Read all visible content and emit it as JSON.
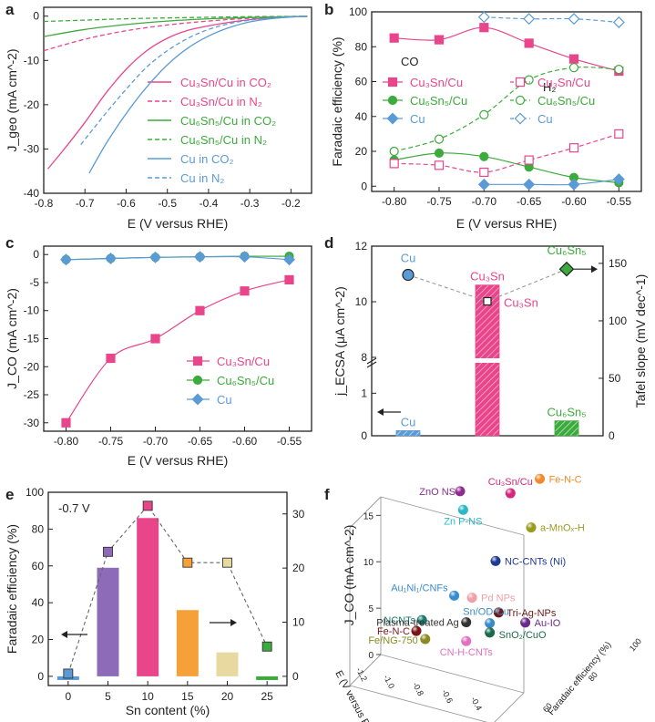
{
  "colors": {
    "pink": "#e8458b",
    "green": "#3caa3c",
    "blue": "#5b9bd5",
    "purple": "#8e6bb8",
    "orange": "#f4a13a",
    "beige": "#e8d9a0",
    "darkgreen": "#2e8a2e"
  },
  "chart_data": [
    {
      "panel": "a",
      "type": "line",
      "xlabel": "E (V versus RHE)",
      "ylabel": "J_geo (mA cm^-2)",
      "xlim": [
        -0.8,
        -0.15
      ],
      "ylim": [
        -40,
        2
      ],
      "xticks": [
        -0.8,
        -0.7,
        -0.6,
        -0.5,
        -0.4,
        -0.3,
        -0.2
      ],
      "yticks": [
        0,
        -10,
        -20,
        -30,
        -40
      ],
      "xtick_labels": [
        "-0.8",
        "-0.7",
        "-0.6",
        "-0.5",
        "-0.4",
        "-0.3",
        "-0.2"
      ],
      "ytick_labels": [
        "0",
        "-10",
        "-20",
        "-30",
        "-40"
      ],
      "series": [
        {
          "name": "Cu3Sn/Cu in CO2",
          "label": "Cu₃Sn/Cu in CO₂",
          "color": "#e8458b",
          "dash": false,
          "x": [
            -0.79,
            -0.75,
            -0.7,
            -0.65,
            -0.6,
            -0.55,
            -0.5,
            -0.45,
            -0.4,
            -0.35,
            -0.3,
            -0.25,
            -0.2,
            -0.16
          ],
          "y": [
            -34.5,
            -30,
            -24,
            -17.5,
            -12,
            -7.8,
            -5,
            -3.2,
            -2.2,
            -1.4,
            -0.8,
            -0.4,
            -0.15,
            -0.05
          ]
        },
        {
          "name": "Cu3Sn/Cu in N2",
          "label": "Cu₃Sn/Cu in N₂",
          "color": "#e8458b",
          "dash": true,
          "x": [
            -0.8,
            -0.7,
            -0.6,
            -0.5,
            -0.4,
            -0.3,
            -0.2,
            -0.16
          ],
          "y": [
            -7.8,
            -5.2,
            -3.3,
            -2,
            -1.1,
            -0.5,
            -0.15,
            -0.05
          ]
        },
        {
          "name": "Cu6Sn5/Cu in CO2",
          "label": "Cu₆Sn₅/Cu in CO₂",
          "color": "#3caa3c",
          "dash": false,
          "x": [
            -0.8,
            -0.7,
            -0.6,
            -0.5,
            -0.4,
            -0.3,
            -0.2,
            -0.16
          ],
          "y": [
            -4.6,
            -3,
            -1.9,
            -1.1,
            -0.6,
            -0.3,
            -0.1,
            0
          ]
        },
        {
          "name": "Cu6Sn5/Cu in N2",
          "label": "Cu₆Sn₅/Cu in N₂",
          "color": "#3caa3c",
          "dash": true,
          "x": [
            -0.8,
            -0.7,
            -0.6,
            -0.5,
            -0.4,
            -0.3,
            -0.2,
            -0.16
          ],
          "y": [
            -1.2,
            -0.9,
            -0.6,
            -0.4,
            -0.25,
            -0.12,
            -0.05,
            0
          ]
        },
        {
          "name": "Cu in CO2",
          "label": "Cu in CO₂",
          "color": "#5b9bd5",
          "dash": false,
          "x": [
            -0.69,
            -0.65,
            -0.6,
            -0.55,
            -0.5,
            -0.45,
            -0.4,
            -0.35,
            -0.3,
            -0.25,
            -0.2,
            -0.16
          ],
          "y": [
            -35.5,
            -29,
            -22,
            -16,
            -11,
            -7.2,
            -4.5,
            -2.6,
            -1.3,
            -0.6,
            -0.2,
            -0.05
          ]
        },
        {
          "name": "Cu in N2",
          "label": "Cu in N₂",
          "color": "#5b9bd5",
          "dash": true,
          "x": [
            -0.71,
            -0.65,
            -0.6,
            -0.55,
            -0.5,
            -0.45,
            -0.4,
            -0.35,
            -0.3,
            -0.25,
            -0.2,
            -0.16
          ],
          "y": [
            -29,
            -22,
            -16.5,
            -11.5,
            -7.8,
            -5,
            -3,
            -1.7,
            -0.9,
            -0.4,
            -0.15,
            -0.05
          ]
        }
      ]
    },
    {
      "panel": "b",
      "type": "line",
      "xlabel": "E (V versus RHE)",
      "ylabel": "Faradaic efficiency (%)",
      "xlim": [
        -0.825,
        -0.525
      ],
      "ylim": [
        -3,
        100
      ],
      "categories": [
        -0.8,
        -0.75,
        -0.7,
        -0.65,
        -0.6,
        -0.55
      ],
      "xtick_labels": [
        "-0.80",
        "-0.75",
        "-0.70",
        "-0.65",
        "-0.60",
        "-0.55"
      ],
      "yticks": [
        0,
        20,
        40,
        60,
        80,
        100
      ],
      "ytick_labels": [
        "0",
        "20",
        "40",
        "60",
        "80",
        "100"
      ],
      "legend_co": "CO",
      "legend_h2": "H₂",
      "series": [
        {
          "name": "Cu3Sn/Cu CO",
          "label": "Cu₃Sn/Cu",
          "gas": "CO",
          "color": "#e8458b",
          "marker": "square",
          "filled": true,
          "x": [
            -0.8,
            -0.75,
            -0.7,
            -0.65,
            -0.6,
            -0.55
          ],
          "values": [
            85,
            84,
            91,
            82,
            73,
            66
          ]
        },
        {
          "name": "Cu6Sn5/Cu CO",
          "label": "Cu₆Sn₅/Cu",
          "gas": "CO",
          "color": "#3caa3c",
          "marker": "circle",
          "filled": true,
          "x": [
            -0.8,
            -0.75,
            -0.7,
            -0.65,
            -0.6,
            -0.55
          ],
          "values": [
            15,
            19,
            17,
            11,
            5,
            2
          ]
        },
        {
          "name": "Cu CO",
          "label": "Cu",
          "gas": "CO",
          "color": "#5b9bd5",
          "marker": "diamond",
          "filled": true,
          "x": [
            -0.7,
            -0.65,
            -0.6,
            -0.55
          ],
          "values": [
            1,
            1,
            1,
            4
          ]
        },
        {
          "name": "Cu3Sn/Cu H2",
          "label": "Cu₃Sn/Cu",
          "gas": "H2",
          "color": "#e8458b",
          "marker": "square",
          "filled": false,
          "x": [
            -0.8,
            -0.75,
            -0.7,
            -0.65,
            -0.6,
            -0.55
          ],
          "values": [
            13,
            12,
            8,
            15,
            22,
            30
          ]
        },
        {
          "name": "Cu6Sn5/Cu H2",
          "label": "Cu₆Sn₅/Cu",
          "gas": "H2",
          "color": "#3caa3c",
          "marker": "circle",
          "filled": false,
          "x": [
            -0.8,
            -0.75,
            -0.7,
            -0.65,
            -0.6,
            -0.55
          ],
          "values": [
            20,
            27,
            41,
            61,
            68,
            67
          ]
        },
        {
          "name": "Cu H2",
          "label": "Cu",
          "gas": "H2",
          "color": "#5b9bd5",
          "marker": "diamond",
          "filled": false,
          "x": [
            -0.7,
            -0.65,
            -0.6,
            -0.55
          ],
          "values": [
            97,
            96,
            96,
            94
          ]
        }
      ]
    },
    {
      "panel": "c",
      "type": "line",
      "xlabel": "E (V versus RHE)",
      "ylabel": "J_CO (mA cm^-2)",
      "xlim": [
        -0.825,
        -0.525
      ],
      "ylim": [
        -31.5,
        1.5
      ],
      "categories": [
        -0.8,
        -0.75,
        -0.7,
        -0.65,
        -0.6,
        -0.55
      ],
      "xtick_labels": [
        "-0.80",
        "-0.75",
        "-0.70",
        "-0.65",
        "-0.60",
        "-0.55"
      ],
      "yticks": [
        0,
        -5,
        -10,
        -15,
        -20,
        -25,
        -30
      ],
      "ytick_labels": [
        "0",
        "-5",
        "-10",
        "-15",
        "-20",
        "-25",
        "-30"
      ],
      "series": [
        {
          "name": "Cu3Sn/Cu",
          "label": "Cu₃Sn/Cu",
          "color": "#e8458b",
          "marker": "square",
          "x": [
            -0.8,
            -0.75,
            -0.7,
            -0.65,
            -0.6,
            -0.55
          ],
          "values": [
            -30,
            -18.5,
            -15,
            -10,
            -6.5,
            -4.5
          ]
        },
        {
          "name": "Cu6Sn5/Cu",
          "label": "Cu₆Sn₅/Cu",
          "color": "#3caa3c",
          "marker": "circle",
          "x": [
            -0.8,
            -0.75,
            -0.7,
            -0.65,
            -0.6,
            -0.55
          ],
          "values": [
            -0.9,
            -0.7,
            -0.5,
            -0.4,
            -0.3,
            -0.3
          ]
        },
        {
          "name": "Cu",
          "label": "Cu",
          "color": "#5b9bd5",
          "marker": "diamond",
          "x": [
            -0.8,
            -0.75,
            -0.7,
            -0.65,
            -0.6,
            -0.55
          ],
          "values": [
            -0.9,
            -0.7,
            -0.5,
            -0.4,
            -0.4,
            -0.9
          ]
        }
      ]
    },
    {
      "panel": "d",
      "type": "bar",
      "ylabel_left": "j_ECSA (μA cm^-2)",
      "ylabel_right": "Tafel slope (mV dec^-1)",
      "categories": [
        "Cu",
        "Cu₃Sn",
        "Cu₆Sn₅"
      ],
      "bar_values": [
        0.12,
        10.6,
        0.35
      ],
      "bar_labels": [
        "Cu",
        "Cu₃Sn",
        "Cu₆Sn₅"
      ],
      "tafel_values": [
        140,
        117,
        145
      ],
      "tafel_labels": [
        "Cu",
        "Cu₃Sn",
        "Cu₆Sn₅"
      ],
      "left_axis_segments": [
        {
          "range": [
            0,
            1.5
          ],
          "ticks": [
            0,
            1
          ]
        },
        {
          "range": [
            8,
            12
          ],
          "ticks": [
            8,
            10,
            12
          ]
        }
      ],
      "right_ylim": [
        0,
        165
      ],
      "right_yticks": [
        0,
        50,
        100,
        150
      ],
      "left_tick_labels": [
        "0",
        "1",
        "8",
        "10",
        "12"
      ],
      "right_tick_labels": [
        "0",
        "50",
        "100",
        "150"
      ]
    },
    {
      "panel": "e",
      "type": "bar",
      "annotation": "-0.7 V",
      "xlabel": "Sn content (%)",
      "ylabel_left": "Faradaic efficiency (%)",
      "ylim_left": [
        -5,
        100
      ],
      "ylim_right": [
        -1.7,
        34
      ],
      "categories": [
        "0",
        "5",
        "10",
        "15",
        "20",
        "25"
      ],
      "bar_values": [
        -2,
        59,
        86,
        36,
        13,
        -2
      ],
      "scatter_values": [
        0.5,
        23,
        31.5,
        21,
        21,
        5.5
      ],
      "colors": [
        "#5b9bd5",
        "#8e6bb8",
        "#e8458b",
        "#f4a13a",
        "#e8d9a0",
        "#3caa3c"
      ],
      "yticks_left": [
        0,
        20,
        40,
        60,
        80,
        100
      ],
      "yticks_right": [
        0,
        10,
        20,
        30
      ],
      "left_tick_labels": [
        "0",
        "20",
        "40",
        "60",
        "80",
        "100"
      ],
      "right_tick_labels": [
        "0",
        "10",
        "20",
        "30"
      ]
    },
    {
      "panel": "f",
      "type": "scatter",
      "xlabel": "E (V versus RHE)",
      "ylabel": "J_CO (mA cm^-2)",
      "zlabel": "Faradaic efficiency (%)",
      "yticks": [
        0,
        5,
        10,
        15
      ],
      "ytick_labels": [
        "0",
        "5",
        "10",
        "15"
      ],
      "e_tick_labels": [
        "-1.2",
        "-1.0",
        "-0.8",
        "-0.6",
        "-0.4"
      ],
      "fe_tick_labels": [
        "60",
        "80",
        "100"
      ],
      "points": [
        {
          "label": "ZnO NS",
          "E": -1.0,
          "FE": 92,
          "J": 16.5,
          "color": "#8e2d8e"
        },
        {
          "label": "Zn P-NS",
          "E": -0.95,
          "FE": 90,
          "J": 14.5,
          "color": "#29b8c8"
        },
        {
          "label": "Cu₃Sn/Cu",
          "E": -0.7,
          "FE": 91,
          "J": 15.5,
          "color": "#d6277a"
        },
        {
          "label": "Fe-N-C",
          "E": -0.6,
          "FE": 95,
          "J": 16.5,
          "color": "#f08b2c"
        },
        {
          "label": "a-MnOₓ-H",
          "E": -0.6,
          "FE": 92,
          "J": 11.5,
          "color": "#9a9a1e"
        },
        {
          "label": "NC-CNTs (Ni)",
          "E": -0.8,
          "FE": 92,
          "J": 8.5,
          "color": "#1f3a93"
        },
        {
          "label": "Au₁Ni₁/CNFs",
          "E": -1.0,
          "FE": 90,
          "J": 5.5,
          "color": "#3a8bd0"
        },
        {
          "label": "Pd NPs",
          "E": -0.9,
          "FE": 90,
          "J": 5.0,
          "color": "#f2a0a8"
        },
        {
          "label": "NCNTs",
          "E": -1.1,
          "FE": 85,
          "J": 3.5,
          "color": "#1a7a6a"
        },
        {
          "label": "Fe-N-C",
          "E": -1.05,
          "FE": 80,
          "J": 2.5,
          "color": "#7a1418"
        },
        {
          "label": "Plasma-treated Ag",
          "E": -0.9,
          "FE": 88,
          "J": 2.5,
          "color": "#333333"
        },
        {
          "label": "Tri-Ag-NPs",
          "E": -0.75,
          "FE": 90,
          "J": 3.0,
          "color": "#6b1a1a"
        },
        {
          "label": "Fe/NG-750",
          "E": -1.0,
          "FE": 80,
          "J": 1.5,
          "color": "#8a8a20"
        },
        {
          "label": "Sn/OD-Cu",
          "E": -0.8,
          "FE": 90,
          "J": 2.0,
          "color": "#3a8ac8"
        },
        {
          "label": "Au-IO",
          "E": -0.6,
          "FE": 90,
          "J": 1.5,
          "color": "#6a2a8a"
        },
        {
          "label": "SnO₂/CuO",
          "E": -0.8,
          "FE": 90,
          "J": 1.0,
          "color": "#1a6a4a"
        },
        {
          "label": "CN-H-CNTs",
          "E": -0.9,
          "FE": 88,
          "J": 0.5,
          "color": "#e070c0"
        }
      ]
    }
  ]
}
